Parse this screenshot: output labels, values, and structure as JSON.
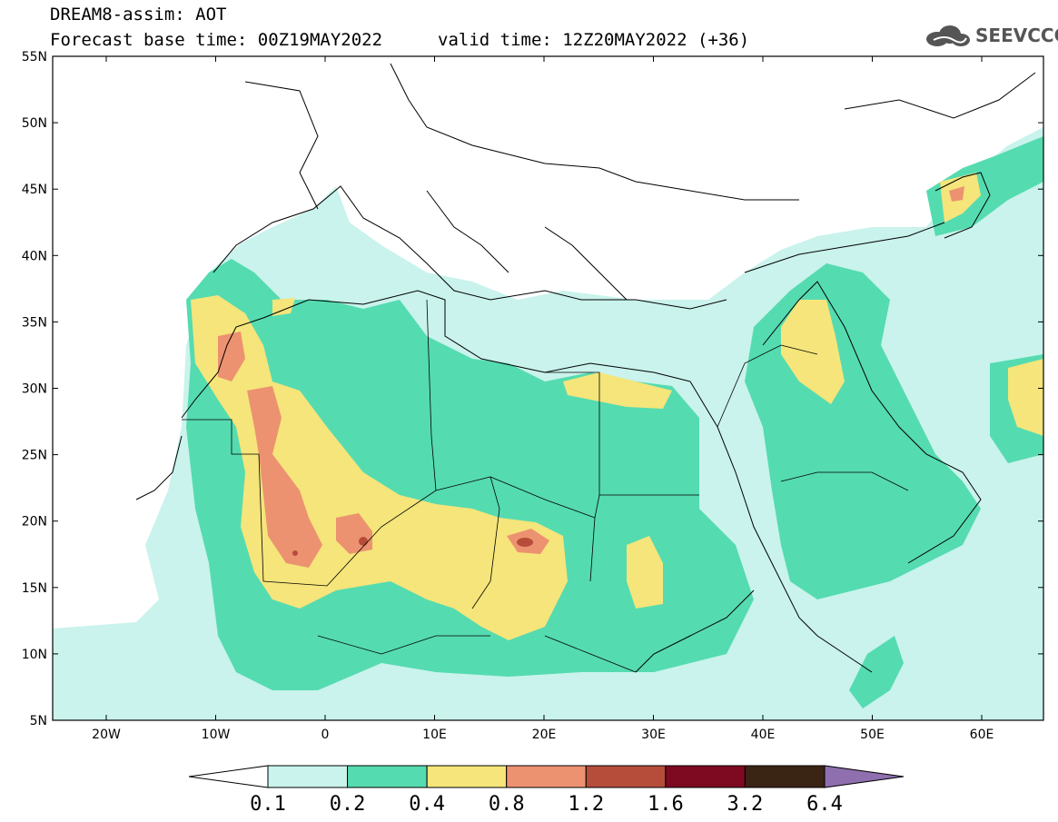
{
  "header": {
    "title": "DREAM8-assim: AOT",
    "base_time": "Forecast base time: 00Z19MAY2022",
    "valid_time": "valid time: 12Z20MAY2022 (+36)",
    "logo_text": "SEEVCCC"
  },
  "axes": {
    "lat_labels": [
      "55N",
      "50N",
      "45N",
      "40N",
      "35N",
      "30N",
      "25N",
      "20N",
      "15N",
      "10N",
      "5N"
    ],
    "lon_labels": [
      "20W",
      "10W",
      "0",
      "10E",
      "20E",
      "30E",
      "40E",
      "50E",
      "60E"
    ]
  },
  "colorbar": {
    "labels": [
      "0.1",
      "0.2",
      "0.4",
      "0.8",
      "1.2",
      "1.6",
      "3.2",
      "6.4"
    ],
    "colors": [
      "#ffffff",
      "#c9f3ec",
      "#55dbb0",
      "#f5e57a",
      "#ec9270",
      "#b54d3a",
      "#7d0a20",
      "#3a2414",
      "#8f6fae"
    ]
  },
  "colors": {
    "very_low": "#c9f3ec",
    "low": "#55dbb0",
    "medium": "#f5e57a",
    "high": "#ec9270",
    "very_high": "#b54d3a",
    "extreme": "#7d0a20"
  }
}
